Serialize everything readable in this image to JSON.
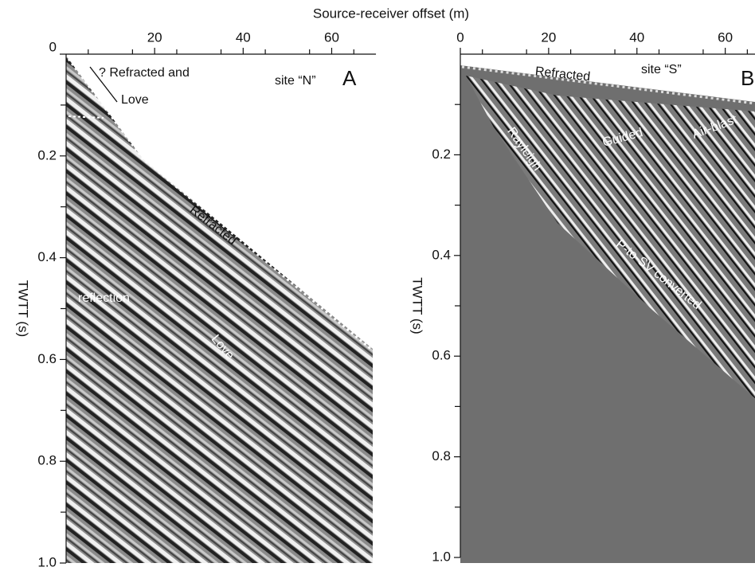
{
  "figure": {
    "x_axis_title": "Source-receiver offset (m)",
    "panels": [
      {
        "letter": "A",
        "site": "site “N”",
        "y_axis_title": "TWTT (s)",
        "xlim": [
          0,
          70
        ],
        "xticks": [
          20,
          40,
          60
        ],
        "ylim": [
          0,
          1.0
        ],
        "yticks": [
          0,
          0.2,
          0.4,
          0.6,
          0.8,
          {
            "value": 1,
            "label": "1.0"
          }
        ],
        "annotations": [
          "? Refracted and",
          "Love",
          "Refracted",
          "reflection",
          "Love"
        ]
      },
      {
        "letter": "B",
        "site": "site “S”",
        "y_axis_title": "TWTT (s)",
        "xlim": [
          0,
          70
        ],
        "xticks": [
          0,
          20,
          40,
          60
        ],
        "ylim": [
          0,
          1.0
        ],
        "yticks": [
          0.2,
          0.4,
          0.6,
          0.8,
          {
            "value": 1,
            "label": "1.0"
          }
        ],
        "annotations": [
          "Refracted",
          "Rayleigh",
          "Guided",
          "Air-blast",
          "P-to-SV converted"
        ]
      }
    ]
  }
}
